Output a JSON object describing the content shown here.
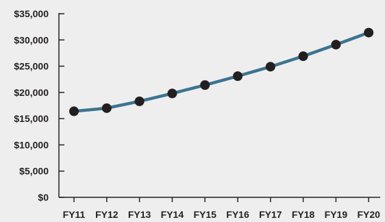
{
  "chart_data": {
    "type": "line",
    "title": "",
    "xlabel": "",
    "ylabel": "",
    "categories": [
      "FY11",
      "FY12",
      "FY13",
      "FY14",
      "FY15",
      "FY16",
      "FY17",
      "FY18",
      "FY19",
      "FY20"
    ],
    "series": [
      {
        "values": [
          16400,
          17000,
          18300,
          19800,
          21400,
          23100,
          24900,
          26900,
          29100,
          31400
        ]
      }
    ],
    "ylim": [
      0,
      35000
    ],
    "yticks": [
      0,
      5000,
      10000,
      15000,
      20000,
      25000,
      30000,
      35000
    ],
    "ytick_labels": [
      "$0",
      "$5,000",
      "$10,000",
      "$15,000",
      "$20,000",
      "$25,000",
      "$30,000",
      "$35,000"
    ],
    "grid": false,
    "colors": {
      "line": "#3b7490",
      "marker": "#231f20",
      "axis": "#231f20",
      "background": "#eeeeef"
    }
  }
}
